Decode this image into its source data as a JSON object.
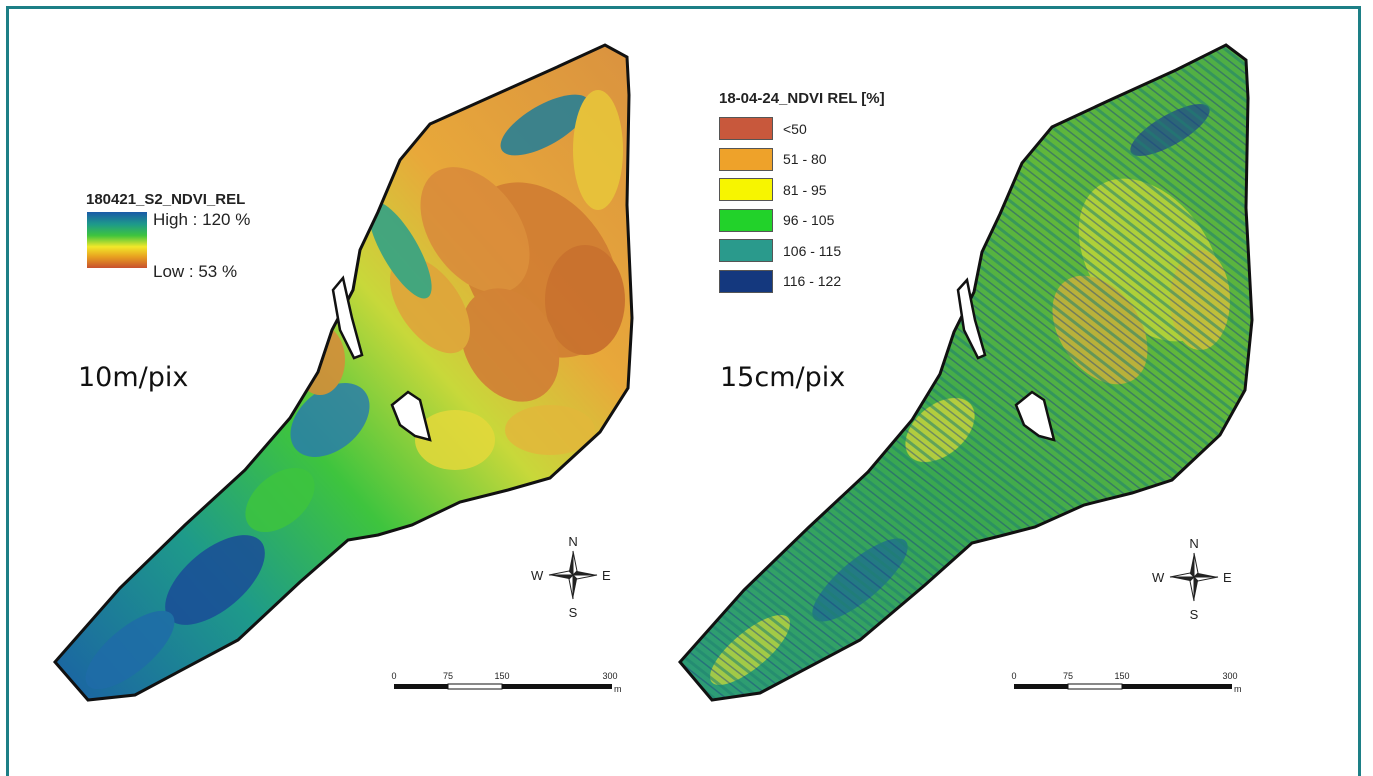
{
  "left_map": {
    "legend_title": "180421_S2_NDVI_REL",
    "high_label": "High : 120 %",
    "low_label": "Low : 53 %",
    "resolution": "10m/pix",
    "gradient_colors": [
      "#1a5aa8",
      "#1e9a8a",
      "#3ec43e",
      "#f2e82a",
      "#e8a020",
      "#c8502e"
    ]
  },
  "right_map": {
    "legend_title": "18-04-24_NDVI REL [%]",
    "resolution": "15cm/pix",
    "classes": [
      {
        "label": "<50",
        "color": "#c8583c"
      },
      {
        "label": "51 - 80",
        "color": "#eea22a"
      },
      {
        "label": "81 - 95",
        "color": "#f7f500"
      },
      {
        "label": "96 - 105",
        "color": "#22d22a"
      },
      {
        "label": "106 - 115",
        "color": "#2a9a8c"
      },
      {
        "label": "116 - 122",
        "color": "#14387e"
      }
    ]
  },
  "compass": {
    "n": "N",
    "s": "S",
    "e": "E",
    "w": "W"
  },
  "scale_bar": {
    "ticks": [
      "0",
      "75",
      "150",
      "300"
    ],
    "unit": "m"
  }
}
